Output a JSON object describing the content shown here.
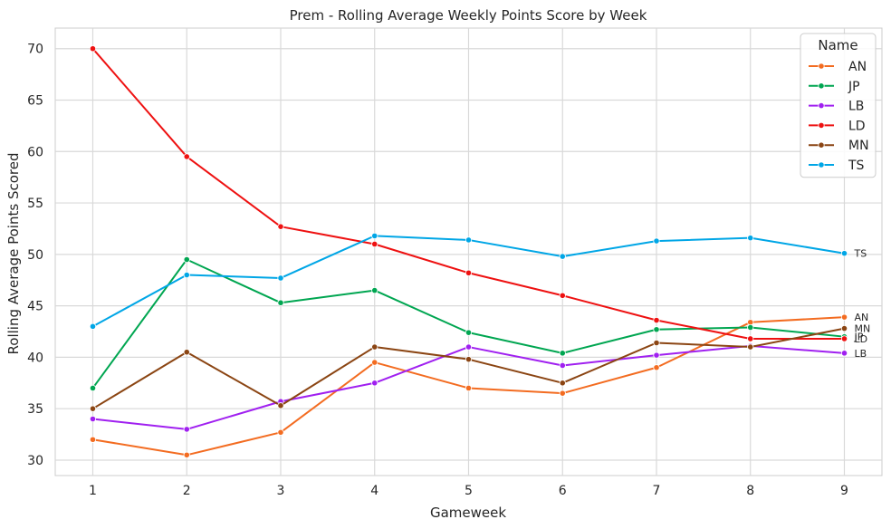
{
  "chart_data": {
    "type": "line",
    "title": "Prem - Rolling Average Weekly Points Score by Week",
    "xlabel": "Gameweek",
    "ylabel": "Rolling Average Points Scored",
    "x": [
      1,
      2,
      3,
      4,
      5,
      6,
      7,
      8,
      9
    ],
    "xlim": [
      0.6,
      9.4
    ],
    "ylim": [
      28.5,
      72
    ],
    "yticks": [
      30,
      35,
      40,
      45,
      50,
      55,
      60,
      65,
      70
    ],
    "grid": true,
    "legend": {
      "title": "Name",
      "placement": "top-right"
    },
    "series": [
      {
        "name": "AN",
        "color": "#f36c21",
        "values": [
          32.0,
          30.5,
          32.7,
          39.5,
          37.0,
          36.5,
          39.0,
          43.4,
          43.9
        ]
      },
      {
        "name": "JP",
        "color": "#00a651",
        "values": [
          37.0,
          49.5,
          45.3,
          46.5,
          42.4,
          40.4,
          42.7,
          42.9,
          42.0
        ]
      },
      {
        "name": "LB",
        "color": "#a020f0",
        "values": [
          34.0,
          33.0,
          35.7,
          37.5,
          41.0,
          39.2,
          40.2,
          41.1,
          40.4
        ]
      },
      {
        "name": "LD",
        "color": "#ee1111",
        "values": [
          70.0,
          59.5,
          52.7,
          51.0,
          48.2,
          46.0,
          43.6,
          41.8,
          41.8
        ]
      },
      {
        "name": "MN",
        "color": "#8b4513",
        "values": [
          35.0,
          40.5,
          35.3,
          41.0,
          39.8,
          37.5,
          41.4,
          41.0,
          42.8
        ]
      },
      {
        "name": "TS",
        "color": "#00a6e6",
        "values": [
          43.0,
          48.0,
          47.7,
          51.8,
          51.4,
          49.8,
          51.3,
          51.6,
          50.1
        ]
      }
    ]
  }
}
